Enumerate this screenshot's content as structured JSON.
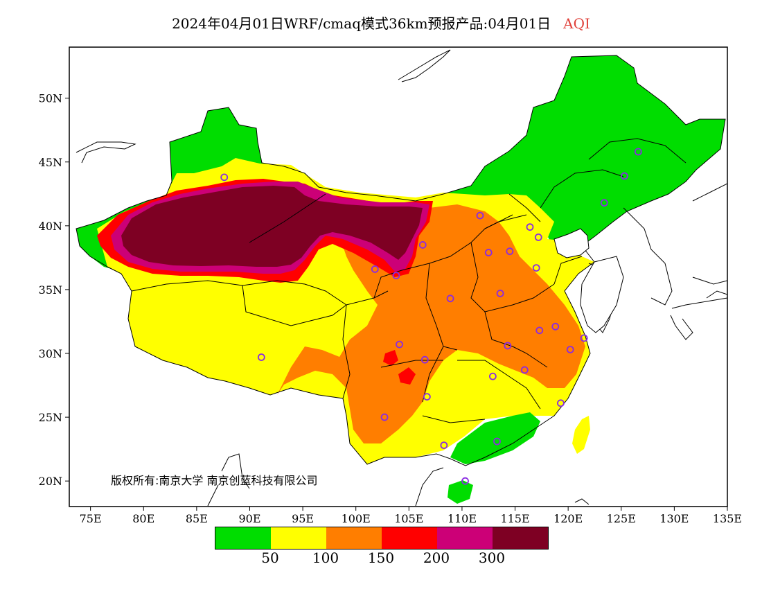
{
  "title": {
    "main": "2024年04月01日WRF/cmaq模式36km预报产品:04月01日",
    "variable": "AQI"
  },
  "copyright": "版权所有:南京大学 南京创蓝科技有限公司",
  "axes": {
    "lat_ticks": [
      "50N",
      "45N",
      "40N",
      "35N",
      "30N",
      "25N",
      "20N"
    ],
    "lat_values": [
      50,
      45,
      40,
      35,
      30,
      25,
      20
    ],
    "lon_ticks": [
      "75E",
      "80E",
      "85E",
      "90E",
      "95E",
      "100E",
      "105E",
      "110E",
      "115E",
      "120E",
      "125E",
      "130E",
      "135E"
    ],
    "lon_values": [
      75,
      80,
      85,
      90,
      95,
      100,
      105,
      110,
      115,
      120,
      125,
      130,
      135
    ],
    "lon_range": [
      73,
      135
    ],
    "lat_range": [
      18,
      54
    ]
  },
  "legend": {
    "colors": [
      "#00dd00",
      "#ffff00",
      "#ff7e00",
      "#ff0000",
      "#cc0077",
      "#7e0023"
    ],
    "labels": [
      "50",
      "100",
      "150",
      "200",
      "300"
    ]
  },
  "stations": [
    {
      "lon": 87.6,
      "lat": 43.8
    },
    {
      "lon": 91.1,
      "lat": 29.7
    },
    {
      "lon": 101.8,
      "lat": 36.6
    },
    {
      "lon": 103.8,
      "lat": 36.1
    },
    {
      "lon": 106.3,
      "lat": 38.5
    },
    {
      "lon": 111.7,
      "lat": 40.8
    },
    {
      "lon": 112.5,
      "lat": 37.9
    },
    {
      "lon": 114.5,
      "lat": 38.0
    },
    {
      "lon": 116.4,
      "lat": 39.9
    },
    {
      "lon": 117.2,
      "lat": 39.1
    },
    {
      "lon": 117.0,
      "lat": 36.7
    },
    {
      "lon": 113.6,
      "lat": 34.7
    },
    {
      "lon": 108.9,
      "lat": 34.3
    },
    {
      "lon": 104.1,
      "lat": 30.7
    },
    {
      "lon": 106.5,
      "lat": 29.5
    },
    {
      "lon": 106.7,
      "lat": 26.6
    },
    {
      "lon": 102.7,
      "lat": 25.0
    },
    {
      "lon": 108.3,
      "lat": 22.8
    },
    {
      "lon": 113.3,
      "lat": 23.1
    },
    {
      "lon": 110.3,
      "lat": 20.0
    },
    {
      "lon": 112.9,
      "lat": 28.2
    },
    {
      "lon": 114.3,
      "lat": 30.6
    },
    {
      "lon": 115.9,
      "lat": 28.7
    },
    {
      "lon": 117.3,
      "lat": 31.8
    },
    {
      "lon": 118.8,
      "lat": 32.1
    },
    {
      "lon": 120.2,
      "lat": 30.3
    },
    {
      "lon": 121.5,
      "lat": 31.2
    },
    {
      "lon": 119.3,
      "lat": 26.1
    },
    {
      "lon": 123.4,
      "lat": 41.8
    },
    {
      "lon": 125.3,
      "lat": 43.9
    },
    {
      "lon": 126.6,
      "lat": 45.8
    }
  ]
}
